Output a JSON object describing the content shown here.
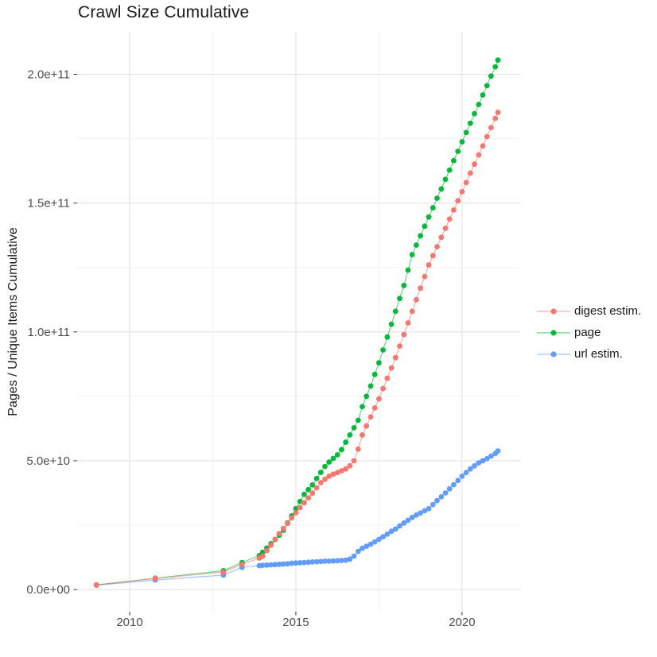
{
  "title": "Crawl Size Cumulative",
  "chart_data": {
    "type": "line",
    "title": "Crawl Size Cumulative",
    "xlabel": "",
    "ylabel": "Pages / Unique Items Cumulative",
    "grid": true,
    "legend_position": "right",
    "xlim": [
      2008.42,
      2021.75
    ],
    "ylim": [
      -8600000000.0,
      216500000000.0
    ],
    "x_ticks": [
      {
        "value": 2010,
        "label": "2010"
      },
      {
        "value": 2015,
        "label": "2015"
      },
      {
        "value": 2020,
        "label": "2020"
      }
    ],
    "y_ticks": [
      {
        "value": 0.0,
        "label": "0.0e+00"
      },
      {
        "value": 50000000000.0,
        "label": "5.0e+10"
      },
      {
        "value": 100000000000.0,
        "label": "1.0e+11"
      },
      {
        "value": 150000000000.0,
        "label": "1.5e+11"
      },
      {
        "value": 200000000000.0,
        "label": "2.0e+11"
      }
    ],
    "x_minor": [
      2012.5,
      2017.5
    ],
    "y_minor": [
      25000000000.0,
      75000000000.0,
      125000000000.0,
      175000000000.0
    ],
    "series": [
      {
        "name": "digest estim.",
        "color": "#F8766D",
        "points": [
          [
            2009.0,
            1800000000.0
          ],
          [
            2010.77,
            4300000000.0
          ],
          [
            2012.82,
            6800000000.0
          ],
          [
            2013.38,
            9800000000.0
          ],
          [
            2013.9,
            12200000000.0
          ],
          [
            2014.0,
            13000000000.0
          ],
          [
            2014.125,
            15100000000.0
          ],
          [
            2014.25,
            17200000000.0
          ],
          [
            2014.375,
            19500000000.0
          ],
          [
            2014.5,
            21700000000.0
          ],
          [
            2014.625,
            23700000000.0
          ],
          [
            2014.75,
            25700000000.0
          ],
          [
            2014.875,
            27800000000.0
          ],
          [
            2015.0,
            29800000000.0
          ],
          [
            2015.125,
            31800000000.0
          ],
          [
            2015.25,
            33700000000.0
          ],
          [
            2015.375,
            35600000000.0
          ],
          [
            2015.5,
            37400000000.0
          ],
          [
            2015.625,
            39500000000.0
          ],
          [
            2015.75,
            41500000000.0
          ],
          [
            2015.875,
            42800000000.0
          ],
          [
            2016.0,
            44000000000.0
          ],
          [
            2016.125,
            44800000000.0
          ],
          [
            2016.25,
            45400000000.0
          ],
          [
            2016.375,
            46100000000.0
          ],
          [
            2016.5,
            46800000000.0
          ],
          [
            2016.625,
            48000000000.0
          ],
          [
            2016.75,
            50000000000.0
          ],
          [
            2016.875,
            54500000000.0
          ],
          [
            2017.0,
            60000000000.0
          ],
          [
            2017.125,
            63500000000.0
          ],
          [
            2017.25,
            67000000000.0
          ],
          [
            2017.375,
            70500000000.0
          ],
          [
            2017.5,
            74000000000.0
          ],
          [
            2017.625,
            78000000000.0
          ],
          [
            2017.75,
            82000000000.0
          ],
          [
            2017.875,
            86000000000.0
          ],
          [
            2018.0,
            90000000000.0
          ],
          [
            2018.125,
            94500000000.0
          ],
          [
            2018.25,
            99000000000.0
          ],
          [
            2018.375,
            103500000000.0
          ],
          [
            2018.5,
            108000000000.0
          ],
          [
            2018.625,
            112500000000.0
          ],
          [
            2018.75,
            117000000000.0
          ],
          [
            2018.875,
            121500000000.0
          ],
          [
            2019.0,
            126000000000.0
          ],
          [
            2019.125,
            129600000000.0
          ],
          [
            2019.25,
            133100000000.0
          ],
          [
            2019.375,
            136700000000.0
          ],
          [
            2019.5,
            140200000000.0
          ],
          [
            2019.625,
            143800000000.0
          ],
          [
            2019.75,
            147300000000.0
          ],
          [
            2019.875,
            150900000000.0
          ],
          [
            2020.0,
            154400000000.0
          ],
          [
            2020.125,
            158000000000.0
          ],
          [
            2020.25,
            161600000000.0
          ],
          [
            2020.375,
            165100000000.0
          ],
          [
            2020.5,
            168700000000.0
          ],
          [
            2020.625,
            172200000000.0
          ],
          [
            2020.75,
            175800000000.0
          ],
          [
            2020.875,
            179300000000.0
          ],
          [
            2021.0,
            182900000000.0
          ],
          [
            2021.08,
            185200000000.0
          ]
        ]
      },
      {
        "name": "page",
        "color": "#00BA38",
        "points": [
          [
            2009.0,
            1800000000.0
          ],
          [
            2010.77,
            4400000000.0
          ],
          [
            2012.82,
            7300000000.0
          ],
          [
            2013.38,
            10500000000.0
          ],
          [
            2013.9,
            13200000000.0
          ],
          [
            2014.0,
            14500000000.0
          ],
          [
            2014.125,
            16100000000.0
          ],
          [
            2014.25,
            17800000000.0
          ],
          [
            2014.375,
            19400000000.0
          ],
          [
            2014.5,
            21100000000.0
          ],
          [
            2014.625,
            23000000000.0
          ],
          [
            2014.75,
            25900000000.0
          ],
          [
            2014.875,
            28600000000.0
          ],
          [
            2015.0,
            31400000000.0
          ],
          [
            2015.125,
            34200000000.0
          ],
          [
            2015.25,
            36900000000.0
          ],
          [
            2015.375,
            38800000000.0
          ],
          [
            2015.5,
            40600000000.0
          ],
          [
            2015.625,
            43100000000.0
          ],
          [
            2015.75,
            45500000000.0
          ],
          [
            2015.875,
            47800000000.0
          ],
          [
            2016.0,
            49500000000.0
          ],
          [
            2016.125,
            50900000000.0
          ],
          [
            2016.25,
            52300000000.0
          ],
          [
            2016.375,
            54300000000.0
          ],
          [
            2016.5,
            57200000000.0
          ],
          [
            2016.625,
            60000000000.0
          ],
          [
            2016.75,
            62800000000.0
          ],
          [
            2016.875,
            65700000000.0
          ],
          [
            2017.0,
            71000000000.0
          ],
          [
            2017.125,
            75000000000.0
          ],
          [
            2017.25,
            79000000000.0
          ],
          [
            2017.375,
            83500000000.0
          ],
          [
            2017.5,
            88000000000.0
          ],
          [
            2017.625,
            93000000000.0
          ],
          [
            2017.75,
            98000000000.0
          ],
          [
            2017.875,
            103000000000.0
          ],
          [
            2018.0,
            108000000000.0
          ],
          [
            2018.125,
            113000000000.0
          ],
          [
            2018.25,
            118000000000.0
          ],
          [
            2018.375,
            124000000000.0
          ],
          [
            2018.5,
            130000000000.0
          ],
          [
            2018.625,
            133700000000.0
          ],
          [
            2018.75,
            137300000000.0
          ],
          [
            2018.875,
            141000000000.0
          ],
          [
            2019.0,
            144600000000.0
          ],
          [
            2019.125,
            148200000000.0
          ],
          [
            2019.25,
            151900000000.0
          ],
          [
            2019.375,
            155500000000.0
          ],
          [
            2019.5,
            159200000000.0
          ],
          [
            2019.625,
            162800000000.0
          ],
          [
            2019.75,
            166500000000.0
          ],
          [
            2019.875,
            170100000000.0
          ],
          [
            2020.0,
            173800000000.0
          ],
          [
            2020.125,
            177400000000.0
          ],
          [
            2020.25,
            181000000000.0
          ],
          [
            2020.375,
            184700000000.0
          ],
          [
            2020.5,
            188300000000.0
          ],
          [
            2020.625,
            192000000000.0
          ],
          [
            2020.75,
            195600000000.0
          ],
          [
            2020.875,
            199300000000.0
          ],
          [
            2021.0,
            202900000000.0
          ],
          [
            2021.08,
            205500000000.0
          ]
        ]
      },
      {
        "name": "url estim.",
        "color": "#619CFF",
        "points": [
          [
            2009.0,
            1700000000.0
          ],
          [
            2010.77,
            3700000000.0
          ],
          [
            2012.82,
            5600000000.0
          ],
          [
            2013.38,
            8600000000.0
          ],
          [
            2013.9,
            9300000000.0
          ],
          [
            2014.0,
            9400000000.0
          ],
          [
            2014.125,
            9500000000.0
          ],
          [
            2014.25,
            9600000000.0
          ],
          [
            2014.375,
            9700000000.0
          ],
          [
            2014.5,
            9800000000.0
          ],
          [
            2014.625,
            9900000000.0
          ],
          [
            2014.75,
            10000000000.0
          ],
          [
            2014.875,
            10200000000.0
          ],
          [
            2015.0,
            10300000000.0
          ],
          [
            2015.125,
            10400000000.0
          ],
          [
            2015.25,
            10500000000.0
          ],
          [
            2015.375,
            10600000000.0
          ],
          [
            2015.5,
            10700000000.0
          ],
          [
            2015.625,
            10800000000.0
          ],
          [
            2015.75,
            10900000000.0
          ],
          [
            2015.875,
            11000000000.0
          ],
          [
            2016.0,
            11000000000.0
          ],
          [
            2016.125,
            11100000000.0
          ],
          [
            2016.25,
            11200000000.0
          ],
          [
            2016.375,
            11300000000.0
          ],
          [
            2016.5,
            11400000000.0
          ],
          [
            2016.625,
            11800000000.0
          ],
          [
            2016.75,
            13000000000.0
          ],
          [
            2016.875,
            14800000000.0
          ],
          [
            2017.0,
            16000000000.0
          ],
          [
            2017.125,
            16800000000.0
          ],
          [
            2017.25,
            17600000000.0
          ],
          [
            2017.375,
            18500000000.0
          ],
          [
            2017.5,
            19500000000.0
          ],
          [
            2017.625,
            20500000000.0
          ],
          [
            2017.75,
            21500000000.0
          ],
          [
            2017.875,
            22600000000.0
          ],
          [
            2018.0,
            23500000000.0
          ],
          [
            2018.125,
            24700000000.0
          ],
          [
            2018.25,
            25800000000.0
          ],
          [
            2018.375,
            26900000000.0
          ],
          [
            2018.5,
            28000000000.0
          ],
          [
            2018.625,
            28900000000.0
          ],
          [
            2018.75,
            29700000000.0
          ],
          [
            2018.875,
            30600000000.0
          ],
          [
            2019.0,
            31400000000.0
          ],
          [
            2019.125,
            33000000000.0
          ],
          [
            2019.25,
            34500000000.0
          ],
          [
            2019.375,
            36000000000.0
          ],
          [
            2019.5,
            37500000000.0
          ],
          [
            2019.625,
            39100000000.0
          ],
          [
            2019.75,
            40700000000.0
          ],
          [
            2019.875,
            42300000000.0
          ],
          [
            2020.0,
            44000000000.0
          ],
          [
            2020.125,
            45400000000.0
          ],
          [
            2020.25,
            46800000000.0
          ],
          [
            2020.375,
            48000000000.0
          ],
          [
            2020.5,
            49200000000.0
          ],
          [
            2020.625,
            50000000000.0
          ],
          [
            2020.75,
            50800000000.0
          ],
          [
            2020.875,
            51800000000.0
          ],
          [
            2021.0,
            52800000000.0
          ],
          [
            2021.08,
            53800000000.0
          ]
        ]
      }
    ],
    "style": {
      "grid_major_color": "#e2e2e2",
      "grid_minor_color": "#f0f0f0",
      "tick_color": "#333333",
      "tick_label_color": "#4d4d4d",
      "point_radius": 3.4
    }
  }
}
